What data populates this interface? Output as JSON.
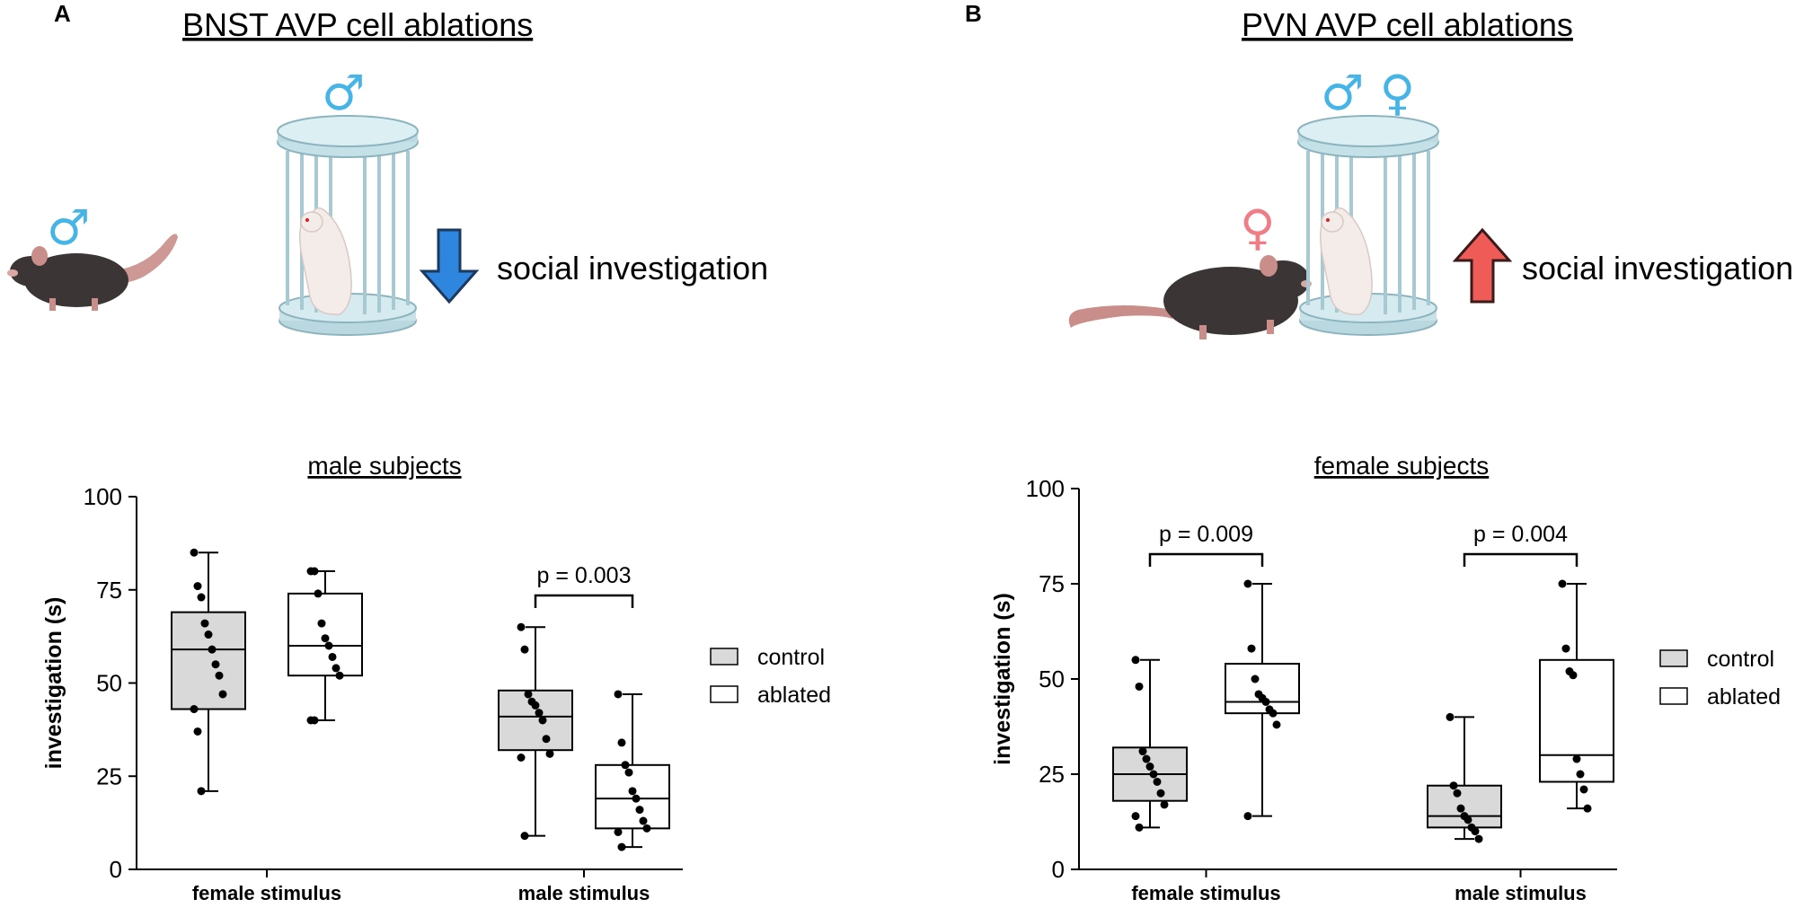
{
  "panels": {
    "A": {
      "letter": "A",
      "title": "BNST AVP cell ablations",
      "effect_text": "social investigation",
      "arrow": "down-arrow",
      "arrow_color": "#2e86de",
      "subject_symbol": "♂",
      "stimulus_symbols": "♂"
    },
    "B": {
      "letter": "B",
      "title": "PVN AVP cell ablations",
      "effect_text": "social investigation",
      "arrow": "up-arrow",
      "arrow_color": "#ef5b57",
      "subject_symbol": "♀",
      "stimulus_symbols": "♂ ♀"
    }
  },
  "colors": {
    "male_symbol": "#45b4e6",
    "female_symbol": "#f07c86",
    "control_fill": "#d9d9d9",
    "ablated_fill": "#ffffff"
  },
  "legend": {
    "control": "control",
    "ablated": "ablated"
  },
  "chart_data": [
    {
      "type": "box",
      "title": "male subjects",
      "ylabel": "investigation (s)",
      "ylim": [
        0,
        100
      ],
      "yticks": [
        0,
        25,
        50,
        75,
        100
      ],
      "categories": [
        "female stimulus",
        "male stimulus"
      ],
      "series": [
        {
          "name": "control",
          "boxes": [
            {
              "min": 21,
              "q1": 43,
              "median": 59,
              "q3": 69,
              "max": 85,
              "points": [
                85,
                76,
                73,
                66,
                63,
                59,
                55,
                52,
                47,
                43,
                37,
                21
              ]
            },
            {
              "min": 9,
              "q1": 32,
              "median": 41,
              "q3": 48,
              "max": 65,
              "points": [
                65,
                59,
                47,
                45,
                44,
                42,
                40,
                35,
                31,
                30,
                9
              ]
            }
          ]
        },
        {
          "name": "ablated",
          "boxes": [
            {
              "min": 40,
              "q1": 52,
              "median": 60,
              "q3": 74,
              "max": 80,
              "points": [
                80,
                80,
                74,
                66,
                62,
                60,
                57,
                54,
                52,
                40,
                40
              ]
            },
            {
              "min": 6,
              "q1": 11,
              "median": 19,
              "q3": 28,
              "max": 47,
              "points": [
                47,
                34,
                28,
                26,
                21,
                19,
                16,
                13,
                11,
                10,
                6
              ]
            }
          ]
        }
      ],
      "annotations": [
        {
          "category": "male stimulus",
          "text": "p = 0.003"
        }
      ]
    },
    {
      "type": "box",
      "title": "female subjects",
      "ylabel": "investigation (s)",
      "ylim": [
        0,
        100
      ],
      "yticks": [
        0,
        25,
        50,
        75,
        100
      ],
      "categories": [
        "female stimulus",
        "male stimulus"
      ],
      "series": [
        {
          "name": "control",
          "boxes": [
            {
              "min": 11,
              "q1": 18,
              "median": 25,
              "q3": 32,
              "max": 55,
              "points": [
                55,
                48,
                31,
                29,
                27,
                25,
                23,
                20,
                17,
                14,
                11
              ]
            },
            {
              "min": 8,
              "q1": 11,
              "median": 14,
              "q3": 22,
              "max": 40,
              "points": [
                40,
                22,
                20,
                16,
                14,
                13,
                11,
                10,
                8
              ]
            }
          ]
        },
        {
          "name": "ablated",
          "boxes": [
            {
              "min": 14,
              "q1": 41,
              "median": 44,
              "q3": 54,
              "max": 75,
              "points": [
                75,
                58,
                50,
                46,
                45,
                44,
                42,
                41,
                38,
                14
              ]
            },
            {
              "min": 16,
              "q1": 23,
              "median": 30,
              "q3": 55,
              "max": 75,
              "points": [
                75,
                58,
                52,
                51,
                29,
                25,
                21,
                16
              ]
            }
          ]
        }
      ],
      "annotations": [
        {
          "category": "female stimulus",
          "text": "p = 0.009"
        },
        {
          "category": "male stimulus",
          "text": "p = 0.004"
        }
      ]
    }
  ]
}
